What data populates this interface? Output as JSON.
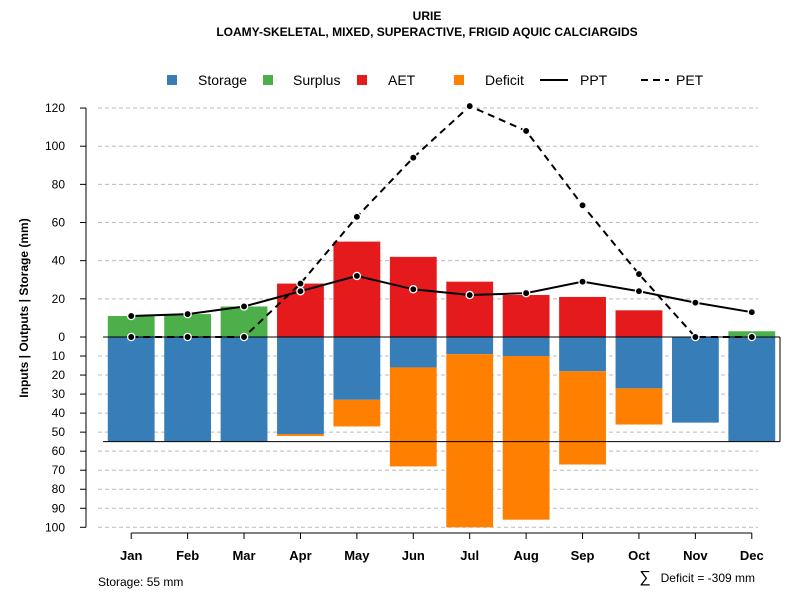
{
  "chart_data": {
    "type": "bar",
    "title": "URIE",
    "subtitle": "LOAMY-SKELETAL, MIXED, SUPERACTIVE, FRIGID AQUIC CALCIARGIDS",
    "ylabel": "Inputs | Outputs | Storage    (mm)",
    "categories": [
      "Jan",
      "Feb",
      "Mar",
      "Apr",
      "May",
      "Jun",
      "Jul",
      "Aug",
      "Sep",
      "Oct",
      "Nov",
      "Dec"
    ],
    "upper_ticks": [
      0,
      20,
      40,
      60,
      80,
      100,
      120
    ],
    "lower_ticks": [
      10,
      20,
      30,
      40,
      50,
      60,
      70,
      80,
      90,
      100
    ],
    "upper_ylim": [
      0,
      120
    ],
    "lower_ylim": [
      0,
      100
    ],
    "series": [
      {
        "name": "Storage",
        "color": "#377EB8",
        "direction": "below",
        "values": [
          55,
          55,
          55,
          51,
          33,
          16,
          9,
          10,
          18,
          27,
          45,
          55
        ]
      },
      {
        "name": "Deficit",
        "color": "#FF7F00",
        "direction": "below",
        "stack_on": "Storage",
        "values": [
          0,
          0,
          0,
          1,
          14,
          52,
          91,
          86,
          49,
          19,
          0,
          0
        ]
      },
      {
        "name": "Surplus",
        "color": "#4DAF4A",
        "direction": "above",
        "values": [
          11,
          12,
          16,
          0,
          0,
          0,
          0,
          0,
          0,
          0,
          0,
          3
        ]
      },
      {
        "name": "AET",
        "color": "#E41A1C",
        "direction": "above",
        "values": [
          0,
          0,
          0,
          28,
          50,
          42,
          29,
          22,
          21,
          14,
          0,
          0
        ]
      },
      {
        "name": "PPT",
        "color": "#000000",
        "style": "solid",
        "values": [
          11,
          12,
          16,
          24,
          32,
          25,
          22,
          23,
          29,
          24,
          18,
          13
        ]
      },
      {
        "name": "PET",
        "color": "#000000",
        "style": "dashed",
        "values": [
          0,
          0,
          0,
          28,
          63,
          94,
          121,
          108,
          69,
          33,
          0,
          0
        ]
      }
    ],
    "legend": [
      "Storage",
      "Surplus",
      "AET",
      "Deficit",
      "PPT",
      "PET"
    ],
    "legend_position": "top",
    "storage_capacity": 55,
    "grid": true
  },
  "notes": {
    "storage": "Storage: 55 mm",
    "deficit_symbol": "∑",
    "deficit": "Deficit = -309 mm"
  }
}
